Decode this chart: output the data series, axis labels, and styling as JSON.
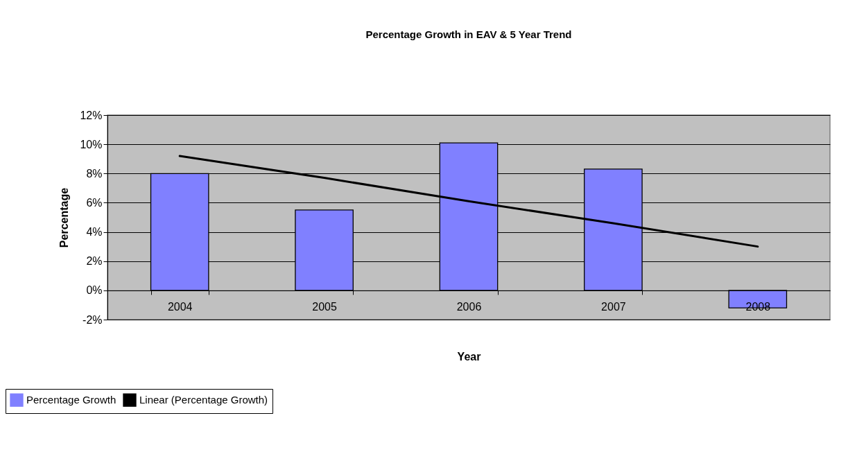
{
  "chart_data": {
    "type": "bar",
    "title": "Percentage Growth in EAV & 5 Year Trend",
    "xlabel": "Year",
    "ylabel": "Percentage",
    "categories": [
      "2004",
      "2005",
      "2006",
      "2007",
      "2008"
    ],
    "series": [
      {
        "name": "Percentage Growth",
        "color": "#8080ff",
        "values": [
          8.0,
          5.5,
          10.1,
          8.3,
          -1.2
        ]
      },
      {
        "name": "Linear (Percentage Growth)",
        "type": "line",
        "color": "#000000",
        "values": [
          9.2,
          7.7,
          6.1,
          4.6,
          3.0
        ]
      }
    ],
    "ylim": [
      -2,
      12
    ],
    "yticks": [
      {
        "value": -2,
        "label": "-2%"
      },
      {
        "value": 0,
        "label": "0%"
      },
      {
        "value": 2,
        "label": "2%"
      },
      {
        "value": 4,
        "label": "4%"
      },
      {
        "value": 6,
        "label": "6%"
      },
      {
        "value": 8,
        "label": "8%"
      },
      {
        "value": 10,
        "label": "10%"
      },
      {
        "value": 12,
        "label": "12%"
      }
    ],
    "grid": "y",
    "legend": "bottom left"
  }
}
